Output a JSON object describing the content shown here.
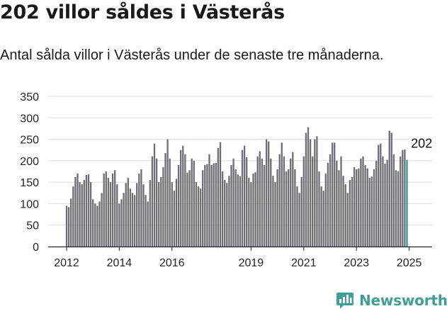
{
  "header": {
    "title": "202 villor såldes i Västerås",
    "subtitle": "Antal sålda villor i Västerås under de senaste tre månaderna."
  },
  "brand": {
    "name": "Newsworthy",
    "icon": "newsworthy-logo-icon",
    "color": "#3f9e96"
  },
  "colors": {
    "bar": "#6e6d73",
    "highlight": "#2a9d96",
    "grid": "#dddddd",
    "axis": "#222222"
  },
  "chart_data": {
    "type": "bar",
    "x_start": "2012-01",
    "x_unit": "month",
    "ylim": [
      0,
      350
    ],
    "yticks": [
      0,
      50,
      100,
      150,
      200,
      250,
      300,
      350
    ],
    "xticks": [
      {
        "label": "2012",
        "month": "2012-01"
      },
      {
        "label": "2014",
        "month": "2014-01"
      },
      {
        "label": "2016",
        "month": "2016-01"
      },
      {
        "label": "2019",
        "month": "2019-01"
      },
      {
        "label": "2021",
        "month": "2021-01"
      },
      {
        "label": "2023",
        "month": "2023-01"
      },
      {
        "label": "2025",
        "month": "2025-01"
      }
    ],
    "annotation": {
      "text": "202",
      "month": "2025-07",
      "value": 202
    },
    "values": [
      95,
      92,
      112,
      140,
      162,
      170,
      150,
      145,
      155,
      167,
      168,
      150,
      110,
      100,
      95,
      105,
      125,
      170,
      175,
      160,
      150,
      170,
      178,
      145,
      100,
      110,
      125,
      148,
      160,
      135,
      125,
      120,
      148,
      170,
      180,
      145,
      120,
      105,
      155,
      210,
      240,
      205,
      150,
      162,
      185,
      218,
      250,
      205,
      150,
      130,
      158,
      190,
      225,
      235,
      215,
      172,
      178,
      205,
      200,
      150,
      140,
      135,
      178,
      190,
      192,
      215,
      190,
      194,
      195,
      230,
      243,
      175,
      155,
      148,
      165,
      190,
      205,
      180,
      168,
      164,
      225,
      235,
      208,
      160,
      150,
      170,
      173,
      210,
      222,
      205,
      190,
      250,
      245,
      205,
      165,
      150,
      180,
      215,
      242,
      210,
      175,
      180,
      205,
      220,
      180,
      140,
      125,
      162,
      210,
      265,
      278,
      250,
      210,
      250,
      257,
      175,
      140,
      130,
      170,
      195,
      215,
      242,
      242,
      200,
      178,
      210,
      165,
      145,
      125,
      155,
      162,
      185,
      180,
      182,
      205,
      210,
      190,
      182,
      160,
      163,
      180,
      200,
      237,
      240,
      210,
      193,
      202,
      270,
      265,
      215,
      178,
      175,
      210,
      225,
      226,
      202
    ]
  }
}
